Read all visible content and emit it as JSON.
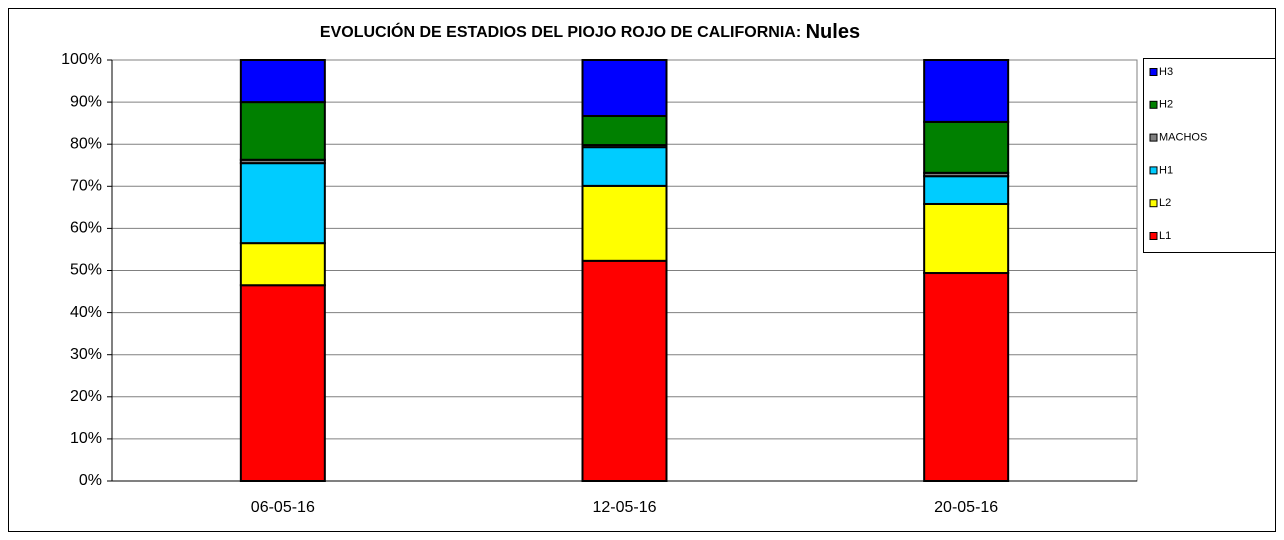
{
  "chart_data": {
    "type": "stacked_bar",
    "title": "EVOLUCIÓN DE ESTADIOS DEL PIOJO ROJO DE CALIFORNIA:",
    "subtitle": "Nules",
    "categories": [
      "06-05-16",
      "12-05-16",
      "20-05-16"
    ],
    "series": [
      {
        "name": "L1",
        "color": "#ff0000",
        "values": [
          46.5,
          52.3,
          49.4
        ]
      },
      {
        "name": "L2",
        "color": "#ffff00",
        "values": [
          10,
          17.8,
          16.4
        ]
      },
      {
        "name": "H1",
        "color": "#00ccff",
        "values": [
          19,
          9.2,
          6.6
        ]
      },
      {
        "name": "MACHOS",
        "color": "#808080",
        "values": [
          0.8,
          0.5,
          0.8
        ]
      },
      {
        "name": "H2",
        "color": "#008000",
        "values": [
          13.7,
          6.9,
          12.1
        ]
      },
      {
        "name": "H3",
        "color": "#0000ff",
        "values": [
          10,
          13.3,
          14.7
        ]
      }
    ],
    "ylim": [
      0,
      100
    ],
    "yticks": [
      {
        "value": 0,
        "label": "0%"
      },
      {
        "value": 10,
        "label": "10%"
      },
      {
        "value": 20,
        "label": "20%"
      },
      {
        "value": 30,
        "label": "30%"
      },
      {
        "value": 40,
        "label": "40%"
      },
      {
        "value": 50,
        "label": "50%"
      },
      {
        "value": 60,
        "label": "60%"
      },
      {
        "value": 70,
        "label": "70%"
      },
      {
        "value": 80,
        "label": "80%"
      },
      {
        "value": 90,
        "label": "90%"
      },
      {
        "value": 100,
        "label": "100%"
      }
    ],
    "grid": true,
    "legend": "right"
  }
}
